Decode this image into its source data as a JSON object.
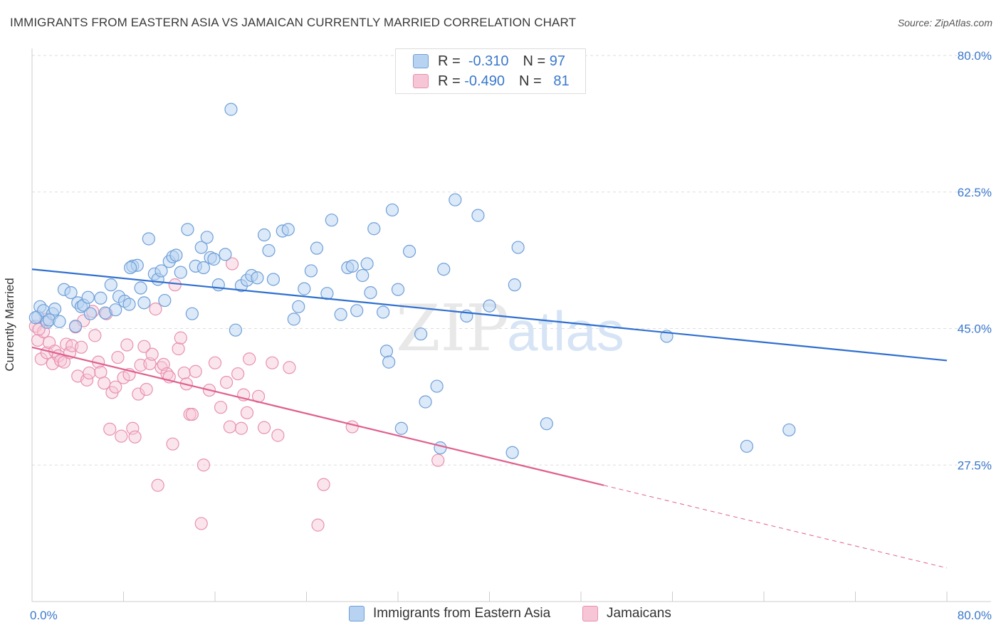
{
  "title": "IMMIGRANTS FROM EASTERN ASIA VS JAMAICAN CURRENTLY MARRIED CORRELATION CHART",
  "source": "Source: ZipAtlas.com",
  "watermark": {
    "part1": "ZIP",
    "part2": "atlas"
  },
  "colors": {
    "blue_fill": "#b8d3f2",
    "blue_stroke": "#6f9fd8",
    "blue_line": "#2f6fcf",
    "pink_fill": "#f7c6d6",
    "pink_stroke": "#e890ae",
    "pink_line": "#e0608e",
    "axis_text": "#3a78cc",
    "grid": "#dddddd"
  },
  "legend": {
    "rows": [
      {
        "r_label": "R =",
        "r_value": "-0.310",
        "n_label": "N =",
        "n_value": "97"
      },
      {
        "r_label": "R =",
        "r_value": "-0.490",
        "n_label": "N =",
        "n_value": "81"
      }
    ]
  },
  "bottom_legend": [
    "Immigrants from Eastern Asia",
    "Jamaicans"
  ],
  "chart_data": {
    "type": "scatter",
    "xlabel": "",
    "ylabel": "Currently Married",
    "xlim": [
      0,
      80
    ],
    "ylim": [
      10,
      80
    ],
    "x_tick_labels": [
      "0.0%",
      "80.0%"
    ],
    "y_tick_labels": [
      "27.5%",
      "45.0%",
      "62.5%",
      "80.0%"
    ],
    "y_ticks": [
      27.5,
      45.0,
      62.5,
      80.0
    ],
    "grid": true,
    "series": [
      {
        "name": "Immigrants from Eastern Asia",
        "points": [
          [
            0.5,
            46.5
          ],
          [
            0.7,
            47.8
          ],
          [
            1.0,
            47.3
          ],
          [
            1.3,
            45.8
          ],
          [
            1.8,
            46.9
          ],
          [
            2.0,
            47.5
          ],
          [
            2.8,
            50.0
          ],
          [
            3.4,
            49.6
          ],
          [
            3.8,
            45.3
          ],
          [
            4.0,
            48.3
          ],
          [
            4.3,
            47.8
          ],
          [
            4.5,
            48.0
          ],
          [
            4.9,
            49.0
          ],
          [
            5.1,
            46.9
          ],
          [
            6.0,
            48.9
          ],
          [
            6.4,
            47.0
          ],
          [
            6.9,
            50.6
          ],
          [
            7.3,
            47.4
          ],
          [
            7.6,
            49.1
          ],
          [
            8.1,
            48.5
          ],
          [
            8.5,
            48.1
          ],
          [
            8.8,
            53.0
          ],
          [
            9.2,
            53.1
          ],
          [
            9.5,
            50.2
          ],
          [
            9.8,
            48.3
          ],
          [
            10.2,
            56.5
          ],
          [
            10.7,
            52.0
          ],
          [
            11.0,
            51.3
          ],
          [
            11.3,
            52.4
          ],
          [
            11.6,
            48.6
          ],
          [
            12.0,
            53.6
          ],
          [
            12.3,
            54.2
          ],
          [
            12.6,
            54.4
          ],
          [
            13.0,
            52.2
          ],
          [
            13.6,
            57.7
          ],
          [
            14.0,
            46.9
          ],
          [
            14.3,
            53.0
          ],
          [
            14.8,
            55.4
          ],
          [
            15.3,
            56.7
          ],
          [
            15.6,
            54.1
          ],
          [
            15.9,
            53.9
          ],
          [
            16.3,
            50.6
          ],
          [
            16.9,
            54.5
          ],
          [
            17.4,
            73.1
          ],
          [
            17.8,
            44.8
          ],
          [
            18.3,
            50.5
          ],
          [
            18.8,
            51.2
          ],
          [
            19.2,
            51.8
          ],
          [
            19.7,
            51.5
          ],
          [
            20.3,
            57.0
          ],
          [
            20.7,
            55.0
          ],
          [
            21.1,
            51.3
          ],
          [
            21.9,
            57.5
          ],
          [
            22.4,
            57.7
          ],
          [
            22.9,
            46.2
          ],
          [
            23.3,
            47.8
          ],
          [
            23.8,
            50.1
          ],
          [
            24.4,
            52.4
          ],
          [
            24.9,
            55.3
          ],
          [
            25.8,
            49.5
          ],
          [
            26.2,
            58.9
          ],
          [
            27.0,
            46.8
          ],
          [
            27.6,
            52.8
          ],
          [
            28.0,
            53.0
          ],
          [
            28.4,
            47.3
          ],
          [
            28.9,
            51.8
          ],
          [
            29.3,
            53.3
          ],
          [
            29.6,
            49.6
          ],
          [
            29.9,
            57.8
          ],
          [
            30.7,
            47.1
          ],
          [
            31.0,
            42.1
          ],
          [
            31.2,
            40.7
          ],
          [
            31.5,
            60.2
          ],
          [
            32.0,
            50.0
          ],
          [
            32.3,
            32.2
          ],
          [
            33.0,
            54.9
          ],
          [
            34.0,
            44.3
          ],
          [
            34.4,
            35.6
          ],
          [
            35.4,
            37.6
          ],
          [
            35.7,
            29.7
          ],
          [
            36.0,
            52.6
          ],
          [
            37.0,
            61.5
          ],
          [
            38.0,
            46.6
          ],
          [
            39.0,
            59.5
          ],
          [
            40.0,
            47.9
          ],
          [
            42.0,
            29.1
          ],
          [
            42.2,
            50.6
          ],
          [
            42.5,
            55.4
          ],
          [
            45.0,
            32.8
          ],
          [
            55.5,
            44.0
          ],
          [
            62.5,
            29.9
          ],
          [
            66.2,
            32.0
          ],
          [
            0.3,
            46.4
          ],
          [
            1.5,
            46.1
          ],
          [
            2.4,
            45.9
          ],
          [
            8.6,
            52.8
          ],
          [
            15.0,
            52.8
          ]
        ]
      },
      {
        "name": "Jamaicans",
        "points": [
          [
            0.3,
            45.3
          ],
          [
            0.5,
            43.5
          ],
          [
            0.8,
            41.1
          ],
          [
            1.0,
            44.6
          ],
          [
            1.3,
            41.9
          ],
          [
            1.5,
            43.2
          ],
          [
            1.8,
            40.5
          ],
          [
            2.0,
            42.1
          ],
          [
            2.3,
            41.5
          ],
          [
            2.5,
            40.9
          ],
          [
            2.8,
            40.7
          ],
          [
            3.0,
            43.0
          ],
          [
            3.3,
            41.9
          ],
          [
            3.5,
            42.8
          ],
          [
            3.8,
            45.2
          ],
          [
            4.0,
            38.9
          ],
          [
            4.3,
            42.6
          ],
          [
            4.5,
            46.0
          ],
          [
            4.8,
            38.4
          ],
          [
            5.0,
            39.3
          ],
          [
            5.3,
            47.2
          ],
          [
            5.5,
            44.1
          ],
          [
            5.8,
            40.7
          ],
          [
            6.0,
            39.4
          ],
          [
            6.3,
            38.0
          ],
          [
            6.5,
            46.9
          ],
          [
            6.8,
            32.1
          ],
          [
            7.0,
            36.8
          ],
          [
            7.3,
            37.5
          ],
          [
            7.5,
            41.3
          ],
          [
            7.8,
            31.2
          ],
          [
            8.0,
            38.7
          ],
          [
            8.3,
            42.9
          ],
          [
            8.5,
            39.1
          ],
          [
            8.8,
            32.2
          ],
          [
            9.0,
            31.1
          ],
          [
            9.3,
            36.6
          ],
          [
            9.5,
            40.3
          ],
          [
            9.8,
            42.7
          ],
          [
            10.0,
            37.2
          ],
          [
            10.3,
            40.5
          ],
          [
            10.5,
            41.7
          ],
          [
            10.8,
            47.5
          ],
          [
            11.0,
            24.9
          ],
          [
            11.3,
            40.0
          ],
          [
            11.5,
            40.4
          ],
          [
            11.8,
            39.2
          ],
          [
            12.0,
            38.8
          ],
          [
            12.3,
            30.2
          ],
          [
            12.5,
            50.6
          ],
          [
            12.8,
            42.4
          ],
          [
            13.0,
            43.8
          ],
          [
            13.3,
            39.3
          ],
          [
            13.5,
            37.9
          ],
          [
            13.8,
            34.0
          ],
          [
            14.0,
            34.0
          ],
          [
            14.3,
            39.5
          ],
          [
            14.8,
            20.0
          ],
          [
            15.0,
            27.5
          ],
          [
            15.5,
            37.1
          ],
          [
            16.0,
            40.6
          ],
          [
            16.5,
            34.9
          ],
          [
            17.0,
            38.1
          ],
          [
            17.3,
            32.4
          ],
          [
            17.5,
            53.3
          ],
          [
            18.0,
            39.2
          ],
          [
            18.3,
            32.2
          ],
          [
            18.5,
            36.5
          ],
          [
            18.8,
            34.2
          ],
          [
            19.0,
            41.1
          ],
          [
            19.8,
            36.3
          ],
          [
            20.3,
            32.3
          ],
          [
            21.0,
            40.6
          ],
          [
            21.5,
            31.3
          ],
          [
            22.5,
            40.0
          ],
          [
            25.0,
            19.8
          ],
          [
            25.5,
            25.0
          ],
          [
            28.0,
            32.4
          ],
          [
            35.5,
            28.1
          ],
          [
            1.2,
            46.2
          ],
          [
            0.6,
            44.9
          ]
        ]
      }
    ],
    "trend_lines": [
      {
        "series": "Immigrants from Eastern Asia",
        "from": [
          0,
          52.6
        ],
        "to": [
          80,
          40.9
        ]
      },
      {
        "series": "Jamaicans",
        "from": [
          0,
          42.6
        ],
        "to": [
          50,
          24.9
        ],
        "dashed_to": [
          80,
          14.3
        ]
      }
    ]
  }
}
